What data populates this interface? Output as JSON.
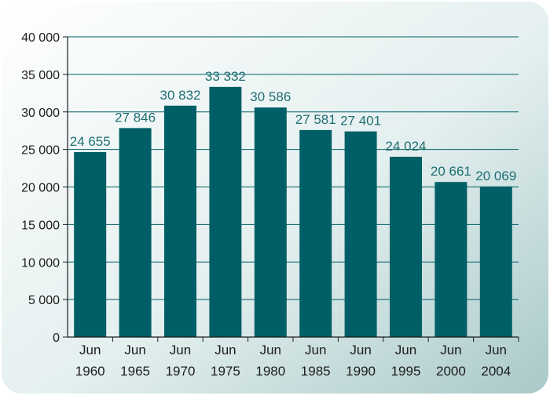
{
  "chart_data": {
    "type": "bar",
    "title": "",
    "xlabel": "",
    "ylabel": "",
    "categories": [
      [
        "Jun",
        "1960"
      ],
      [
        "Jun",
        "1965"
      ],
      [
        "Jun",
        "1970"
      ],
      [
        "Jun",
        "1975"
      ],
      [
        "Jun",
        "1980"
      ],
      [
        "Jun",
        "1985"
      ],
      [
        "Jun",
        "1990"
      ],
      [
        "Jun",
        "1995"
      ],
      [
        "Jun",
        "2000"
      ],
      [
        "Jun",
        "2004"
      ]
    ],
    "values": [
      24655,
      27846,
      30832,
      33332,
      30586,
      27581,
      27401,
      24024,
      20661,
      20069
    ],
    "value_labels": [
      "24 655",
      "27 846",
      "30 832",
      "33 332",
      "30 586",
      "27 581",
      "27 401",
      "24 024",
      "20 661",
      "20 069"
    ],
    "ylim": [
      0,
      40000
    ],
    "yticks": [
      0,
      5000,
      10000,
      15000,
      20000,
      25000,
      30000,
      35000,
      40000
    ],
    "ytick_labels": [
      "0",
      "5 000",
      "10 000",
      "15 000",
      "20 000",
      "25 000",
      "30 000",
      "35 000",
      "40 000"
    ],
    "grid": true,
    "legend": "none",
    "colors": {
      "bar": "#005f66",
      "data_label": "#1f6e73",
      "frame_dark": "#a9c9c9",
      "frame_light": "#ffffff",
      "gridline": "#005f66",
      "axis": "#1c1c1c"
    }
  }
}
